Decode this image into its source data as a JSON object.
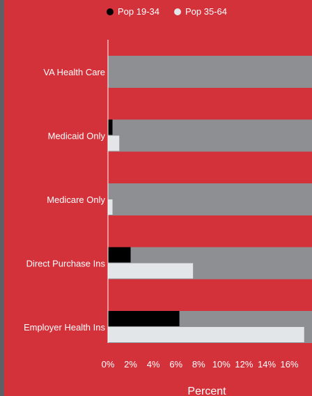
{
  "colors": {
    "background": "#d4323b",
    "track": "#8e8f93",
    "series_1": "#000000",
    "series_2": "#e3e6e8",
    "text": "#ffffff",
    "left_strip": "#5f5f64"
  },
  "chart_data": {
    "type": "bar",
    "orientation": "horizontal",
    "title": "",
    "xlabel": "Percent",
    "ylabel": "",
    "xlim": [
      0,
      17.5
    ],
    "xticks": [
      "0%",
      "2%",
      "4%",
      "6%",
      "8%",
      "10%",
      "12%",
      "14%",
      "16%"
    ],
    "categories": [
      "VA Health Care",
      "Medicaid Only",
      "Medicare Only",
      "Direct Purchase Ins",
      "Employer Health Ins"
    ],
    "series": [
      {
        "name": "Pop 19-34",
        "values": [
          0.0,
          0.4,
          0.0,
          2.0,
          6.3
        ]
      },
      {
        "name": "Pop 35-64",
        "values": [
          0.0,
          1.0,
          0.4,
          7.5,
          17.3
        ]
      }
    ],
    "legend": {
      "position": "top",
      "items": [
        "Pop 19-34",
        "Pop 35-64"
      ]
    },
    "grid": false
  }
}
